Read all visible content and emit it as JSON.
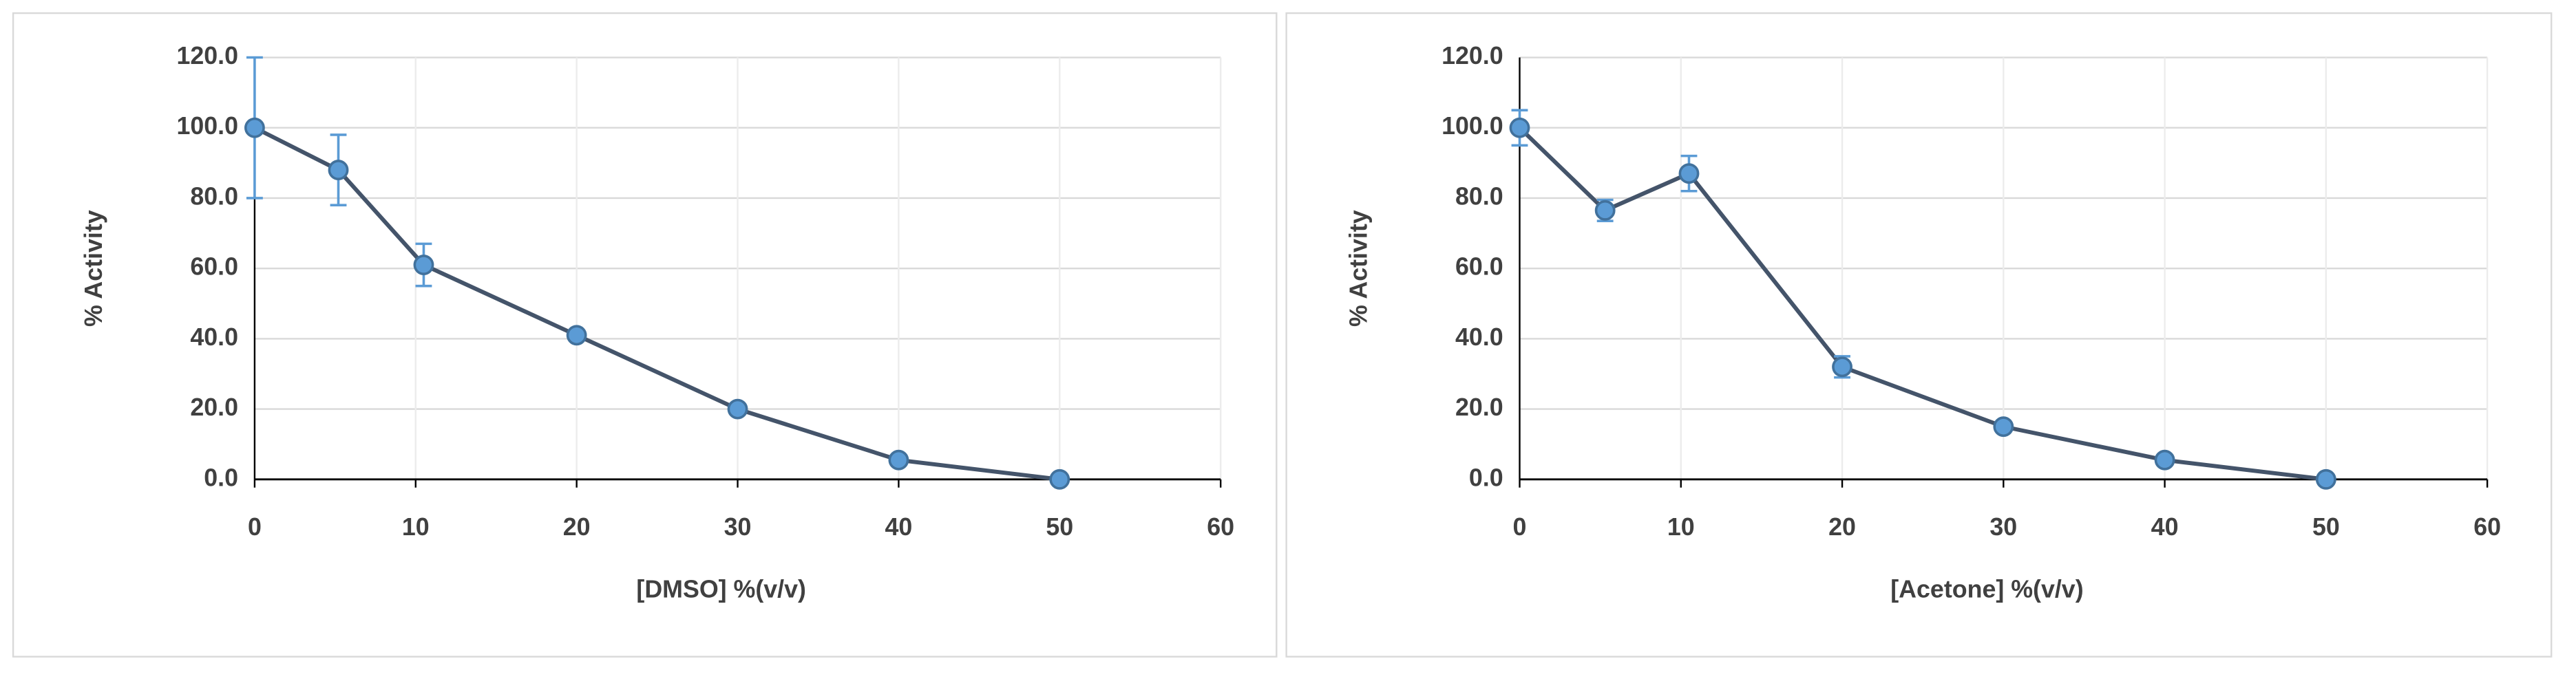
{
  "chart_data": [
    {
      "type": "line",
      "xlabel": "[DMSO] %(v/v)",
      "ylabel": "% Activity",
      "xlim": [
        0,
        60
      ],
      "xticks": [
        0,
        10,
        20,
        30,
        40,
        50,
        60
      ],
      "ylim": [
        0,
        120
      ],
      "yticks": [
        {
          "value": 0,
          "label": "0.0"
        },
        {
          "value": 20,
          "label": "20.0"
        },
        {
          "value": 40,
          "label": "40.0"
        },
        {
          "value": 60,
          "label": "60.0"
        },
        {
          "value": 80,
          "label": "80.0"
        },
        {
          "value": 100,
          "label": "100.0"
        },
        {
          "value": 120,
          "label": "120.0"
        }
      ],
      "grid": true,
      "series": [
        {
          "color": "#44546a",
          "marker_color": "#5b9bd5",
          "error_color": "#5b9bd5",
          "x": [
            0,
            5.2,
            10.5,
            20,
            30,
            40,
            50
          ],
          "values": [
            100,
            88,
            61,
            41,
            20,
            5.5,
            0
          ],
          "errors": [
            20,
            10,
            6,
            1,
            1,
            0.5,
            0
          ]
        }
      ]
    },
    {
      "type": "line",
      "xlabel": "[Acetone] %(v/v)",
      "ylabel": "% Activity",
      "xlim": [
        0,
        60
      ],
      "xticks": [
        0,
        10,
        20,
        30,
        40,
        50,
        60
      ],
      "ylim": [
        0,
        120
      ],
      "yticks": [
        {
          "value": 0,
          "label": "0.0"
        },
        {
          "value": 20,
          "label": "20.0"
        },
        {
          "value": 40,
          "label": "40.0"
        },
        {
          "value": 60,
          "label": "60.0"
        },
        {
          "value": 80,
          "label": "80.0"
        },
        {
          "value": 100,
          "label": "100.0"
        },
        {
          "value": 120,
          "label": "120.0"
        }
      ],
      "grid": true,
      "series": [
        {
          "color": "#44546a",
          "marker_color": "#5b9bd5",
          "error_color": "#5b9bd5",
          "x": [
            0,
            5.3,
            10.5,
            20,
            30,
            40,
            50
          ],
          "values": [
            100,
            76.5,
            87,
            32,
            15,
            5.5,
            0
          ],
          "errors": [
            5,
            3,
            5,
            3,
            1,
            1,
            0
          ]
        }
      ]
    }
  ]
}
